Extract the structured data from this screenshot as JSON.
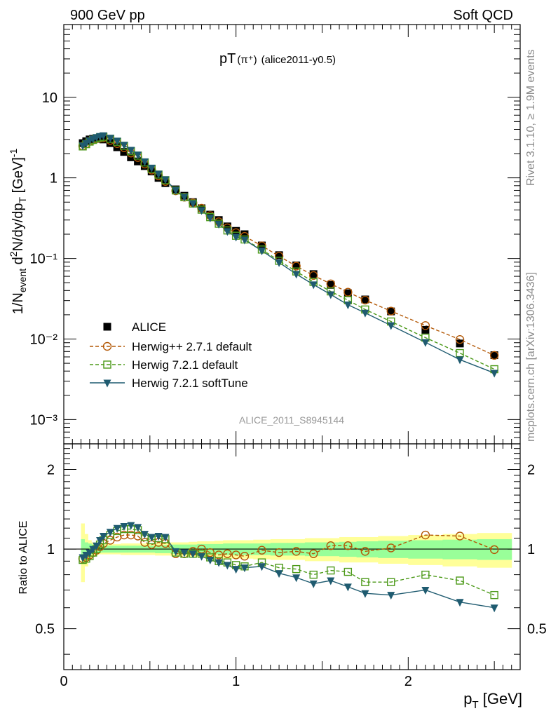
{
  "header": {
    "left": "900 GeV pp",
    "right": "Soft QCD"
  },
  "side_text": {
    "rivet": "Rivet 3.1.10, ≥ 1.9M events",
    "mcplots": "mcplots.cern.ch [arXiv:1306.3436]"
  },
  "chart_data": {
    "type": "scatter",
    "title_main": "pT",
    "title_particle": "(π⁺)",
    "title_tag": "(alice2011-y0.5)",
    "analysis_label": "ALICE_2011_S8945144",
    "xlabel": "p_T [GeV]",
    "ylabel": "1/N_event d²N/dy/dp_T [GeV]⁻¹",
    "ratio_ylabel": "Ratio to ALICE",
    "xlim": [
      0,
      2.65
    ],
    "ylim": [
      0.0005,
      80
    ],
    "yscale": "log",
    "ratio_ylim": [
      0.35,
      2.5
    ],
    "ratio_yscale": "log",
    "x_ticks": [
      "0",
      "1",
      "2"
    ],
    "y_ticks": [
      "10⁻³",
      "10⁻²",
      "10⁻¹",
      "1",
      "10"
    ],
    "ratio_ticks": [
      "0.5",
      "1",
      "2"
    ],
    "legend_position": "middle-left",
    "x": [
      0.11,
      0.13,
      0.15,
      0.17,
      0.19,
      0.21,
      0.23,
      0.27,
      0.31,
      0.35,
      0.39,
      0.43,
      0.47,
      0.51,
      0.55,
      0.59,
      0.65,
      0.7,
      0.75,
      0.8,
      0.85,
      0.9,
      0.95,
      1.0,
      1.05,
      1.15,
      1.25,
      1.35,
      1.45,
      1.55,
      1.65,
      1.75,
      1.9,
      2.1,
      2.3,
      2.5
    ],
    "series": [
      {
        "name": "ALICE",
        "color": "#000000",
        "marker": "filled-square",
        "values": [
          2.7,
          2.85,
          3.0,
          3.05,
          3.1,
          3.05,
          3.0,
          2.7,
          2.4,
          2.1,
          1.8,
          1.6,
          1.4,
          1.2,
          1.0,
          0.86,
          0.72,
          0.6,
          0.5,
          0.42,
          0.35,
          0.3,
          0.25,
          0.22,
          0.2,
          0.145,
          0.11,
          0.082,
          0.064,
          0.047,
          0.037,
          0.031,
          0.022,
          0.013,
          0.0088,
          0.0063
        ],
        "band_inner": [
          0.09,
          0.06,
          0.05,
          0.04,
          0.035,
          0.03,
          0.03,
          0.03,
          0.03,
          0.03,
          0.03,
          0.03,
          0.03,
          0.03,
          0.035,
          0.035,
          0.04,
          0.04,
          0.04,
          0.045,
          0.045,
          0.045,
          0.05,
          0.05,
          0.05,
          0.05,
          0.055,
          0.055,
          0.06,
          0.06,
          0.065,
          0.07,
          0.075,
          0.08,
          0.085,
          0.09
        ],
        "band_outer": [
          0.25,
          0.14,
          0.08,
          0.06,
          0.05,
          0.045,
          0.045,
          0.045,
          0.045,
          0.05,
          0.05,
          0.05,
          0.05,
          0.05,
          0.055,
          0.055,
          0.06,
          0.06,
          0.065,
          0.07,
          0.07,
          0.075,
          0.08,
          0.08,
          0.08,
          0.085,
          0.09,
          0.09,
          0.1,
          0.1,
          0.11,
          0.11,
          0.12,
          0.13,
          0.14,
          0.15
        ]
      },
      {
        "name": "Herwig++ 2.7.1 default",
        "color": "#b35806",
        "marker": "open-circle",
        "dash": true,
        "ratio": [
          0.92,
          0.93,
          0.95,
          0.97,
          0.99,
          1.02,
          1.05,
          1.08,
          1.11,
          1.13,
          1.13,
          1.12,
          1.06,
          1.04,
          1.06,
          1.05,
          0.96,
          0.96,
          0.98,
          1.0,
          0.97,
          0.95,
          0.96,
          0.95,
          0.94,
          0.99,
          0.97,
          0.98,
          0.96,
          1.03,
          1.03,
          0.98,
          1.01,
          1.13,
          1.12,
          0.995
        ]
      },
      {
        "name": "Herwig 7.2.1 default",
        "color": "#4d9a1a",
        "marker": "open-square",
        "dash": true,
        "ratio": [
          0.91,
          0.92,
          0.94,
          0.97,
          1.0,
          1.04,
          1.08,
          1.13,
          1.17,
          1.19,
          1.19,
          1.18,
          1.11,
          1.08,
          1.1,
          1.09,
          0.97,
          0.96,
          0.96,
          0.96,
          0.93,
          0.9,
          0.89,
          0.87,
          0.86,
          0.89,
          0.85,
          0.84,
          0.8,
          0.83,
          0.82,
          0.75,
          0.75,
          0.8,
          0.76,
          0.67
        ]
      },
      {
        "name": "Herwig 7.2.1 softTune",
        "color": "#1f5b70",
        "marker": "filled-triangle-down",
        "dash": false,
        "ratio": [
          0.93,
          0.95,
          0.97,
          1.0,
          1.03,
          1.08,
          1.12,
          1.16,
          1.2,
          1.22,
          1.23,
          1.21,
          1.14,
          1.11,
          1.12,
          1.11,
          0.98,
          0.97,
          0.96,
          0.94,
          0.91,
          0.89,
          0.87,
          0.84,
          0.85,
          0.86,
          0.81,
          0.78,
          0.74,
          0.76,
          0.72,
          0.68,
          0.67,
          0.7,
          0.63,
          0.6
        ]
      }
    ]
  }
}
